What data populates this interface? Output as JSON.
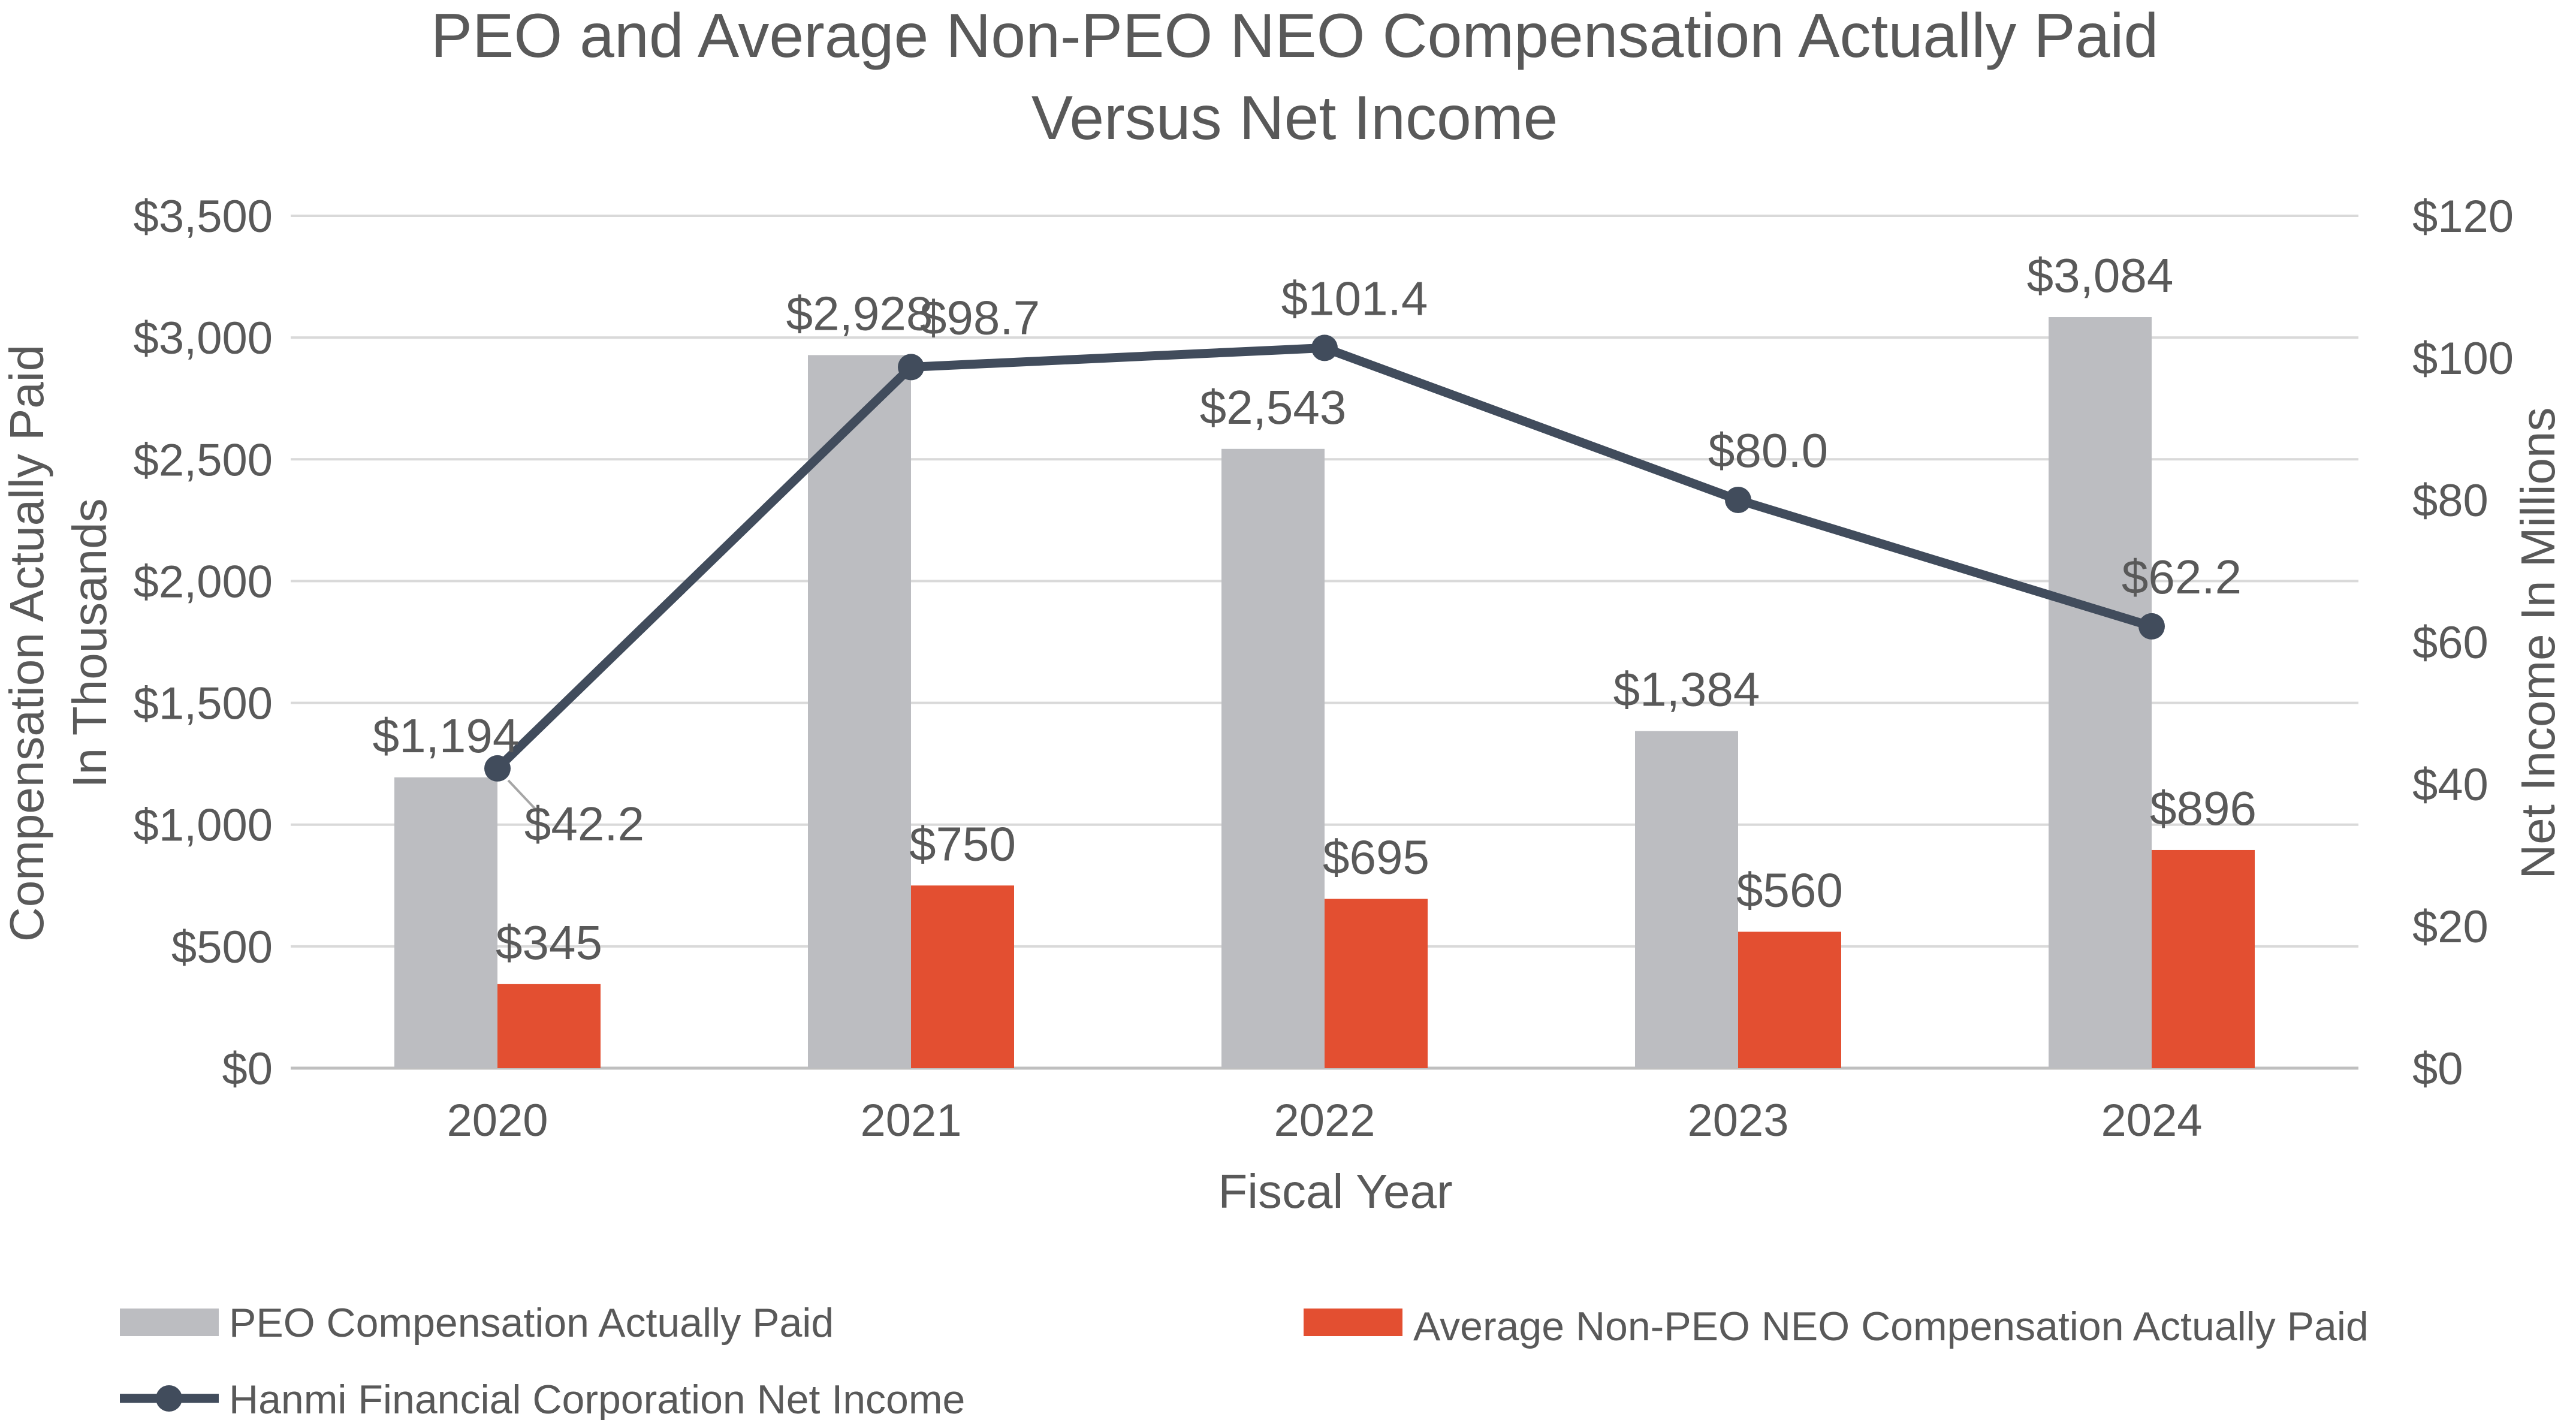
{
  "chart_data": {
    "type": "bar",
    "title_lines": [
      "PEO and Average Non-PEO NEO Compensation Actually Paid",
      "Versus Net Income"
    ],
    "xlabel": "Fiscal Year",
    "ylabel_lines": [
      "Compensation Actually Paid",
      "In Thousands"
    ],
    "y2label": "Net Income In Millions",
    "categories": [
      "2020",
      "2021",
      "2022",
      "2023",
      "2024"
    ],
    "ylim": [
      0,
      3500
    ],
    "y2lim": [
      0,
      120
    ],
    "y_ticks": [
      0,
      500,
      1000,
      1500,
      2000,
      2500,
      3000,
      3500
    ],
    "y_tick_labels": [
      "$0",
      "$500",
      "$1,000",
      "$1,500",
      "$2,000",
      "$2,500",
      "$3,000",
      "$3,500"
    ],
    "y2_ticks": [
      0,
      20,
      40,
      60,
      80,
      100,
      120
    ],
    "y2_tick_labels": [
      "$0",
      "$20",
      "$40",
      "$60",
      "$80",
      "$100",
      "$120"
    ],
    "grid": true,
    "legend_position": "bottom",
    "series": [
      {
        "name": "PEO Compensation Actually Paid",
        "type": "bar",
        "axis": "left",
        "color": "#bcbdc1",
        "values": [
          1194,
          2928,
          2543,
          1384,
          3084
        ],
        "labels": [
          "$1,194",
          "$2,928",
          "$2,543",
          "$1,384",
          "$3,084"
        ]
      },
      {
        "name": "Average Non-PEO NEO Compensation Actually Paid",
        "type": "bar",
        "axis": "left",
        "color": "#e34f31",
        "values": [
          345,
          750,
          695,
          560,
          896
        ],
        "labels": [
          "$345",
          "$750",
          "$695",
          "$560",
          "$896"
        ]
      },
      {
        "name": "Hanmi Financial Corporation Net Income",
        "type": "line",
        "axis": "right",
        "color": "#414c5c",
        "values": [
          42.2,
          98.7,
          101.4,
          80.0,
          62.2
        ],
        "labels": [
          "$42.2",
          "$98.7",
          "$101.4",
          "$80.0",
          "$62.2"
        ]
      }
    ]
  }
}
